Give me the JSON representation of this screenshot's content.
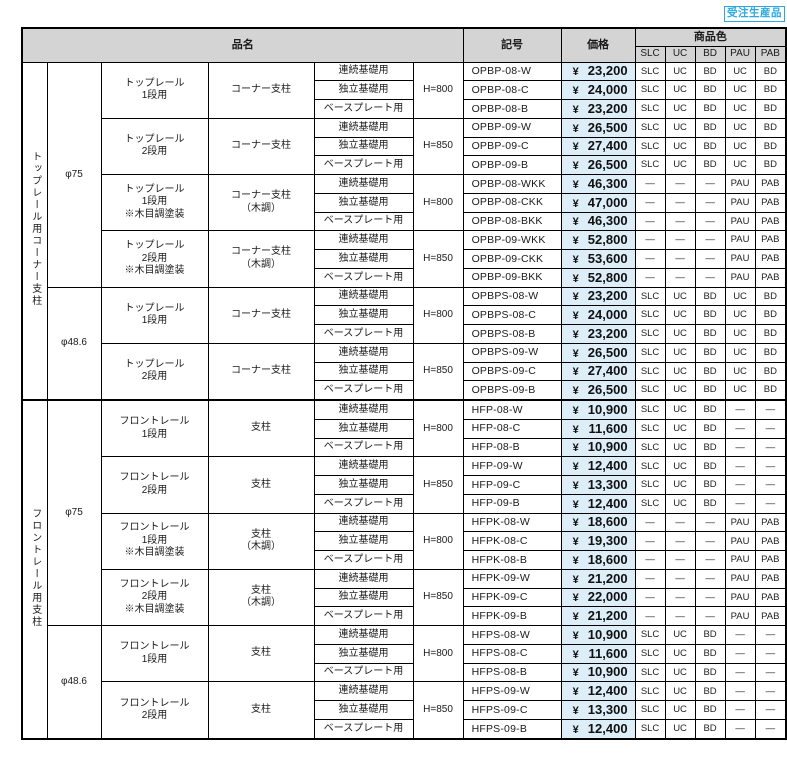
{
  "badge": {
    "label": "受注生産品",
    "color": "#29a9e0"
  },
  "table": {
    "currency": "¥",
    "headers": {
      "product": "品名",
      "code": "記号",
      "price": "価格",
      "colors": "商品色",
      "color_cols": [
        "SLC",
        "UC",
        "BD",
        "PAU",
        "PAB"
      ]
    },
    "groups": [
      {
        "label": "トップレール用コーナー支柱",
        "sizes": [
          {
            "label": "φ75",
            "items": [
              {
                "name": [
                  "トップレール",
                  "1段用"
                ],
                "pillar": [
                  "コーナー支柱"
                ],
                "height": "H=800",
                "colors": [
                  "SLC",
                  "UC",
                  "BD",
                  "UC",
                  "BD"
                ],
                "rows": [
                  {
                    "base": "連続基礎用",
                    "code": "OPBP-08-W",
                    "price": "23,200"
                  },
                  {
                    "base": "独立基礎用",
                    "code": "OPBP-08-C",
                    "price": "24,000"
                  },
                  {
                    "base": "ベースプレート用",
                    "code": "OPBP-08-B",
                    "price": "23,200"
                  }
                ]
              },
              {
                "name": [
                  "トップレール",
                  "2段用"
                ],
                "pillar": [
                  "コーナー支柱"
                ],
                "height": "H=850",
                "colors": [
                  "SLC",
                  "UC",
                  "BD",
                  "UC",
                  "BD"
                ],
                "rows": [
                  {
                    "base": "連続基礎用",
                    "code": "OPBP-09-W",
                    "price": "26,500"
                  },
                  {
                    "base": "独立基礎用",
                    "code": "OPBP-09-C",
                    "price": "27,400"
                  },
                  {
                    "base": "ベースプレート用",
                    "code": "OPBP-09-B",
                    "price": "26,500"
                  }
                ]
              },
              {
                "name": [
                  "トップレール",
                  "1段用",
                  "※木目調塗装"
                ],
                "pillar": [
                  "コーナー支柱",
                  "（木調）"
                ],
                "height": "H=800",
                "colors": [
                  "—",
                  "—",
                  "—",
                  "PAU",
                  "PAB"
                ],
                "rows": [
                  {
                    "base": "連続基礎用",
                    "code": "OPBP-08-WKK",
                    "price": "46,300"
                  },
                  {
                    "base": "独立基礎用",
                    "code": "OPBP-08-CKK",
                    "price": "47,000"
                  },
                  {
                    "base": "ベースプレート用",
                    "code": "OPBP-08-BKK",
                    "price": "46,300"
                  }
                ]
              },
              {
                "name": [
                  "トップレール",
                  "2段用",
                  "※木目調塗装"
                ],
                "pillar": [
                  "コーナー支柱",
                  "（木調）"
                ],
                "height": "H=850",
                "colors": [
                  "—",
                  "—",
                  "—",
                  "PAU",
                  "PAB"
                ],
                "rows": [
                  {
                    "base": "連続基礎用",
                    "code": "OPBP-09-WKK",
                    "price": "52,800"
                  },
                  {
                    "base": "独立基礎用",
                    "code": "OPBP-09-CKK",
                    "price": "53,600"
                  },
                  {
                    "base": "ベースプレート用",
                    "code": "OPBP-09-BKK",
                    "price": "52,800"
                  }
                ]
              }
            ]
          },
          {
            "label": "φ48.6",
            "items": [
              {
                "name": [
                  "トップレール",
                  "1段用"
                ],
                "pillar": [
                  "コーナー支柱"
                ],
                "height": "H=800",
                "colors": [
                  "SLC",
                  "UC",
                  "BD",
                  "UC",
                  "BD"
                ],
                "rows": [
                  {
                    "base": "連続基礎用",
                    "code": "OPBPS-08-W",
                    "price": "23,200"
                  },
                  {
                    "base": "独立基礎用",
                    "code": "OPBPS-08-C",
                    "price": "24,000"
                  },
                  {
                    "base": "ベースプレート用",
                    "code": "OPBPS-08-B",
                    "price": "23,200"
                  }
                ]
              },
              {
                "name": [
                  "トップレール",
                  "2段用"
                ],
                "pillar": [
                  "コーナー支柱"
                ],
                "height": "H=850",
                "colors": [
                  "SLC",
                  "UC",
                  "BD",
                  "UC",
                  "BD"
                ],
                "rows": [
                  {
                    "base": "連続基礎用",
                    "code": "OPBPS-09-W",
                    "price": "26,500"
                  },
                  {
                    "base": "独立基礎用",
                    "code": "OPBPS-09-C",
                    "price": "27,400"
                  },
                  {
                    "base": "ベースプレート用",
                    "code": "OPBPS-09-B",
                    "price": "26,500"
                  }
                ]
              }
            ]
          }
        ]
      },
      {
        "label": "フロントレール用支柱",
        "sizes": [
          {
            "label": "φ75",
            "items": [
              {
                "name": [
                  "フロントレール",
                  "1段用"
                ],
                "pillar": [
                  "支柱"
                ],
                "height": "H=800",
                "colors": [
                  "SLC",
                  "UC",
                  "BD",
                  "—",
                  "—"
                ],
                "rows": [
                  {
                    "base": "連続基礎用",
                    "code": "HFP-08-W",
                    "price": "10,900"
                  },
                  {
                    "base": "独立基礎用",
                    "code": "HFP-08-C",
                    "price": "11,600"
                  },
                  {
                    "base": "ベースプレート用",
                    "code": "HFP-08-B",
                    "price": "10,900"
                  }
                ]
              },
              {
                "name": [
                  "フロントレール",
                  "2段用"
                ],
                "pillar": [
                  "支柱"
                ],
                "height": "H=850",
                "colors": [
                  "SLC",
                  "UC",
                  "BD",
                  "—",
                  "—"
                ],
                "rows": [
                  {
                    "base": "連続基礎用",
                    "code": "HFP-09-W",
                    "price": "12,400"
                  },
                  {
                    "base": "独立基礎用",
                    "code": "HFP-09-C",
                    "price": "13,300"
                  },
                  {
                    "base": "ベースプレート用",
                    "code": "HFP-09-B",
                    "price": "12,400"
                  }
                ]
              },
              {
                "name": [
                  "フロントレール",
                  "1段用",
                  "※木目調塗装"
                ],
                "pillar": [
                  "支柱",
                  "（木調）"
                ],
                "height": "H=800",
                "colors": [
                  "—",
                  "—",
                  "—",
                  "PAU",
                  "PAB"
                ],
                "rows": [
                  {
                    "base": "連続基礎用",
                    "code": "HFPK-08-W",
                    "price": "18,600"
                  },
                  {
                    "base": "独立基礎用",
                    "code": "HFPK-08-C",
                    "price": "19,300"
                  },
                  {
                    "base": "ベースプレート用",
                    "code": "HFPK-08-B",
                    "price": "18,600"
                  }
                ]
              },
              {
                "name": [
                  "フロントレール",
                  "2段用",
                  "※木目調塗装"
                ],
                "pillar": [
                  "支柱",
                  "（木調）"
                ],
                "height": "H=850",
                "colors": [
                  "—",
                  "—",
                  "—",
                  "PAU",
                  "PAB"
                ],
                "rows": [
                  {
                    "base": "連続基礎用",
                    "code": "HFPK-09-W",
                    "price": "21,200"
                  },
                  {
                    "base": "独立基礎用",
                    "code": "HFPK-09-C",
                    "price": "22,000"
                  },
                  {
                    "base": "ベースプレート用",
                    "code": "HFPK-09-B",
                    "price": "21,200"
                  }
                ]
              }
            ]
          },
          {
            "label": "φ48.6",
            "items": [
              {
                "name": [
                  "フロントレール",
                  "1段用"
                ],
                "pillar": [
                  "支柱"
                ],
                "height": "H=800",
                "colors": [
                  "SLC",
                  "UC",
                  "BD",
                  "—",
                  "—"
                ],
                "rows": [
                  {
                    "base": "連続基礎用",
                    "code": "HFPS-08-W",
                    "price": "10,900"
                  },
                  {
                    "base": "独立基礎用",
                    "code": "HFPS-08-C",
                    "price": "11,600"
                  },
                  {
                    "base": "ベースプレート用",
                    "code": "HFPS-08-B",
                    "price": "10,900"
                  }
                ]
              },
              {
                "name": [
                  "フロントレール",
                  "2段用"
                ],
                "pillar": [
                  "支柱"
                ],
                "height": "H=850",
                "colors": [
                  "SLC",
                  "UC",
                  "BD",
                  "—",
                  "—"
                ],
                "rows": [
                  {
                    "base": "連続基礎用",
                    "code": "HFPS-09-W",
                    "price": "12,400"
                  },
                  {
                    "base": "独立基礎用",
                    "code": "HFPS-09-C",
                    "price": "13,300"
                  },
                  {
                    "base": "ベースプレート用",
                    "code": "HFPS-09-B",
                    "price": "12,400"
                  }
                ]
              }
            ]
          }
        ]
      }
    ]
  }
}
